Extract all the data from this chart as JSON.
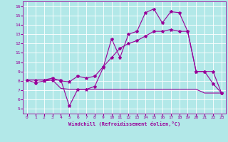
{
  "xlabel": "Windchill (Refroidissement éolien,°C)",
  "ylabel": "",
  "xlim": [
    -0.5,
    23.5
  ],
  "ylim": [
    4.5,
    16.5
  ],
  "xticks": [
    0,
    1,
    2,
    3,
    4,
    5,
    6,
    7,
    8,
    9,
    10,
    11,
    12,
    13,
    14,
    15,
    16,
    17,
    18,
    19,
    20,
    21,
    22,
    23
  ],
  "yticks": [
    5,
    6,
    7,
    8,
    9,
    10,
    11,
    12,
    13,
    14,
    15,
    16
  ],
  "background_color": "#b2e8e8",
  "line_color": "#990099",
  "grid_color": "#ffffff",
  "line1_x": [
    0,
    1,
    2,
    3,
    4,
    5,
    6,
    7,
    8,
    9,
    10,
    11,
    12,
    13,
    14,
    15,
    16,
    17,
    18,
    19,
    20,
    21,
    22,
    23
  ],
  "line1_y": [
    8.1,
    7.8,
    8.0,
    8.1,
    8.1,
    5.3,
    7.1,
    7.1,
    7.4,
    9.4,
    12.5,
    10.5,
    13.0,
    13.3,
    15.3,
    15.7,
    14.2,
    15.4,
    15.3,
    13.3,
    9.0,
    9.0,
    7.7,
    6.7
  ],
  "line2_x": [
    0,
    1,
    2,
    3,
    4,
    5,
    6,
    7,
    8,
    9,
    10,
    11,
    12,
    13,
    14,
    15,
    16,
    17,
    18,
    19,
    20,
    21,
    22,
    23
  ],
  "line2_y": [
    8.1,
    8.1,
    8.1,
    8.1,
    7.2,
    7.1,
    7.1,
    7.1,
    7.1,
    7.1,
    7.1,
    7.1,
    7.1,
    7.1,
    7.1,
    7.1,
    7.1,
    7.1,
    7.1,
    7.1,
    7.1,
    6.7,
    6.7,
    6.7
  ],
  "line3_x": [
    0,
    1,
    2,
    3,
    4,
    5,
    6,
    7,
    8,
    9,
    10,
    11,
    12,
    13,
    14,
    15,
    16,
    17,
    18,
    19,
    20,
    21,
    22,
    23
  ],
  "line3_y": [
    8.1,
    8.1,
    8.1,
    8.3,
    8.0,
    7.9,
    8.5,
    8.3,
    8.5,
    9.5,
    10.5,
    11.5,
    12.0,
    12.3,
    12.8,
    13.3,
    13.3,
    13.5,
    13.3,
    13.3,
    9.0,
    9.0,
    9.0,
    6.7
  ],
  "marker": "*",
  "markersize": 3,
  "linewidth": 0.8
}
